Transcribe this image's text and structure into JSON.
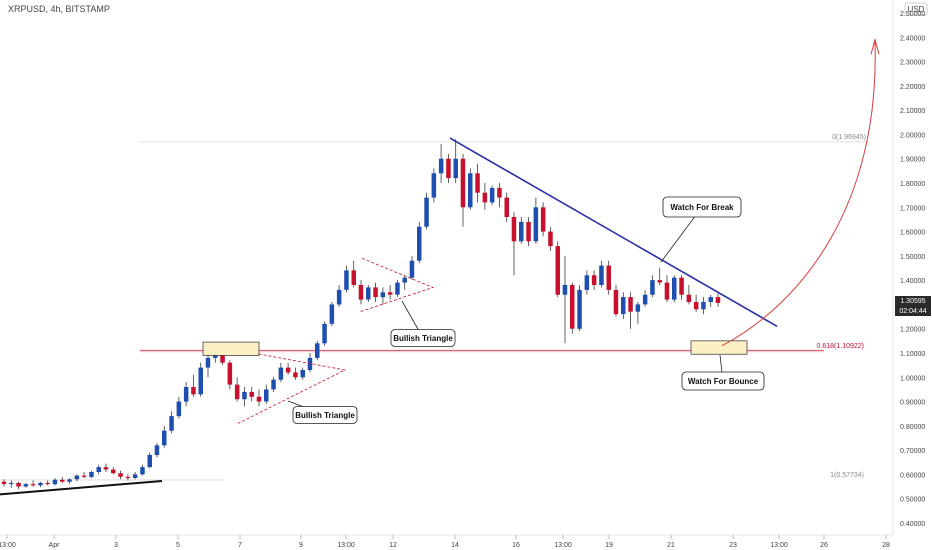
{
  "header": {
    "title": "XRPUSD, 4h, BITSTAMP",
    "currency": "USD"
  },
  "colors": {
    "up": "#1e4fb0",
    "down": "#c8102e",
    "trendline": "#2b2fa3",
    "fib": "#c8102e",
    "fib_zero": "#8c8c8c",
    "arrow": "#d83a3a",
    "zone_fill": "#fdf0c4",
    "zone_stroke": "#2a2a2a",
    "last_price_bg": "#2a2a2a",
    "axis_text": "#444444"
  },
  "chart_data": {
    "type": "candlestick",
    "ylim": [
      0.4,
      2.5
    ],
    "y_ticks": [
      "2.50000",
      "2.40000",
      "2.30000",
      "2.20000",
      "2.10000",
      "2.00000",
      "1.90000",
      "1.80000",
      "1.70000",
      "1.60000",
      "1.50000",
      "1.40000",
      "1.30000",
      "1.20000",
      "1.10000",
      "1.00000",
      "0.90000",
      "0.80000",
      "0.70000",
      "0.60000",
      "0.50000",
      "0.40000"
    ],
    "x_ticks": [
      "13:00",
      "Apr",
      "3",
      "5",
      "7",
      "9",
      "13:00",
      "12",
      "14",
      "16",
      "13:00",
      "19",
      "21",
      "23",
      "13:00",
      "26",
      "28"
    ],
    "last_price": "1.30595",
    "countdown": "02:04:44",
    "fib_levels": [
      {
        "label": "0(1.96945)",
        "value": 1.96945
      },
      {
        "label": "0.618(1.10922)",
        "value": 1.10922
      },
      {
        "label": "1(0.57734)",
        "value": 0.57734
      }
    ],
    "annotations": {
      "watch_break": "Watch For Break",
      "watch_bounce": "Watch For Bounce",
      "triangle_1": "Bullish Triangle",
      "triangle_2": "Bullish Triangle"
    },
    "series": [
      {
        "values": [
          [
            0.57,
            0.58,
            0.55,
            0.56
          ],
          [
            0.56,
            0.575,
            0.545,
            0.565
          ],
          [
            0.565,
            0.57,
            0.54,
            0.55
          ],
          [
            0.55,
            0.565,
            0.545,
            0.56
          ],
          [
            0.56,
            0.575,
            0.55,
            0.555
          ],
          [
            0.555,
            0.57,
            0.548,
            0.565
          ],
          [
            0.565,
            0.575,
            0.555,
            0.56
          ],
          [
            0.56,
            0.585,
            0.555,
            0.578
          ],
          [
            0.578,
            0.59,
            0.565,
            0.57
          ],
          [
            0.57,
            0.585,
            0.562,
            0.58
          ],
          [
            0.58,
            0.6,
            0.572,
            0.595
          ],
          [
            0.595,
            0.61,
            0.585,
            0.59
          ],
          [
            0.59,
            0.615,
            0.585,
            0.61
          ],
          [
            0.61,
            0.64,
            0.6,
            0.63
          ],
          [
            0.63,
            0.645,
            0.61,
            0.62
          ],
          [
            0.62,
            0.63,
            0.6,
            0.605
          ],
          [
            0.605,
            0.615,
            0.58,
            0.59
          ],
          [
            0.59,
            0.6,
            0.575,
            0.585
          ],
          [
            0.585,
            0.61,
            0.58,
            0.6
          ],
          [
            0.6,
            0.64,
            0.595,
            0.63
          ],
          [
            0.63,
            0.69,
            0.625,
            0.68
          ],
          [
            0.68,
            0.73,
            0.67,
            0.72
          ],
          [
            0.72,
            0.8,
            0.71,
            0.78
          ],
          [
            0.78,
            0.86,
            0.77,
            0.84
          ],
          [
            0.84,
            0.92,
            0.83,
            0.9
          ],
          [
            0.9,
            0.98,
            0.88,
            0.96
          ],
          [
            0.96,
            1.01,
            0.92,
            0.93
          ],
          [
            0.93,
            1.06,
            0.92,
            1.04
          ],
          [
            1.04,
            1.1,
            1.0,
            1.08
          ],
          [
            1.08,
            1.13,
            1.06,
            1.11
          ],
          [
            1.11,
            1.12,
            1.05,
            1.06
          ],
          [
            1.06,
            1.07,
            0.95,
            0.97
          ],
          [
            0.97,
            1.0,
            0.9,
            0.91
          ],
          [
            0.91,
            0.96,
            0.88,
            0.94
          ],
          [
            0.94,
            0.96,
            0.9,
            0.92
          ],
          [
            0.92,
            0.95,
            0.88,
            0.9
          ],
          [
            0.9,
            0.97,
            0.89,
            0.95
          ],
          [
            0.95,
            1.0,
            0.94,
            0.99
          ],
          [
            0.99,
            1.06,
            0.98,
            1.04
          ],
          [
            1.04,
            1.06,
            1.01,
            1.02
          ],
          [
            1.02,
            1.04,
            0.99,
            1.0
          ],
          [
            1.0,
            1.04,
            0.99,
            1.03
          ],
          [
            1.03,
            1.1,
            1.02,
            1.08
          ],
          [
            1.08,
            1.15,
            1.07,
            1.14
          ],
          [
            1.14,
            1.23,
            1.13,
            1.22
          ],
          [
            1.22,
            1.31,
            1.21,
            1.3
          ],
          [
            1.3,
            1.38,
            1.29,
            1.36
          ],
          [
            1.36,
            1.46,
            1.35,
            1.44
          ],
          [
            1.44,
            1.48,
            1.37,
            1.38
          ],
          [
            1.38,
            1.4,
            1.3,
            1.32
          ],
          [
            1.32,
            1.38,
            1.31,
            1.37
          ],
          [
            1.37,
            1.39,
            1.31,
            1.33
          ],
          [
            1.33,
            1.37,
            1.3,
            1.35
          ],
          [
            1.35,
            1.38,
            1.32,
            1.34
          ],
          [
            1.34,
            1.4,
            1.33,
            1.39
          ],
          [
            1.39,
            1.42,
            1.36,
            1.41
          ],
          [
            1.41,
            1.5,
            1.4,
            1.48
          ],
          [
            1.48,
            1.64,
            1.47,
            1.62
          ],
          [
            1.62,
            1.76,
            1.61,
            1.74
          ],
          [
            1.74,
            1.86,
            1.72,
            1.84
          ],
          [
            1.84,
            1.96,
            1.8,
            1.9
          ],
          [
            1.9,
            1.92,
            1.8,
            1.82
          ],
          [
            1.82,
            1.98,
            1.8,
            1.9
          ],
          [
            1.9,
            1.92,
            1.62,
            1.7
          ],
          [
            1.7,
            1.86,
            1.69,
            1.84
          ],
          [
            1.84,
            1.88,
            1.72,
            1.76
          ],
          [
            1.76,
            1.8,
            1.69,
            1.72
          ],
          [
            1.72,
            1.79,
            1.71,
            1.78
          ],
          [
            1.78,
            1.8,
            1.7,
            1.74
          ],
          [
            1.74,
            1.76,
            1.64,
            1.66
          ],
          [
            1.66,
            1.68,
            1.42,
            1.56
          ],
          [
            1.56,
            1.66,
            1.55,
            1.64
          ],
          [
            1.64,
            1.66,
            1.54,
            1.56
          ],
          [
            1.56,
            1.74,
            1.55,
            1.7
          ],
          [
            1.7,
            1.72,
            1.58,
            1.6
          ],
          [
            1.6,
            1.62,
            1.52,
            1.54
          ],
          [
            1.54,
            1.56,
            1.33,
            1.34
          ],
          [
            1.34,
            1.5,
            1.14,
            1.38
          ],
          [
            1.38,
            1.39,
            1.18,
            1.2
          ],
          [
            1.2,
            1.38,
            1.19,
            1.36
          ],
          [
            1.36,
            1.44,
            1.34,
            1.42
          ],
          [
            1.42,
            1.44,
            1.36,
            1.38
          ],
          [
            1.38,
            1.48,
            1.37,
            1.46
          ],
          [
            1.46,
            1.48,
            1.34,
            1.36
          ],
          [
            1.36,
            1.38,
            1.25,
            1.26
          ],
          [
            1.26,
            1.35,
            1.24,
            1.33
          ],
          [
            1.33,
            1.35,
            1.2,
            1.27
          ],
          [
            1.27,
            1.31,
            1.22,
            1.3
          ],
          [
            1.3,
            1.36,
            1.29,
            1.34
          ],
          [
            1.34,
            1.42,
            1.33,
            1.4
          ],
          [
            1.4,
            1.45,
            1.38,
            1.39
          ],
          [
            1.39,
            1.42,
            1.31,
            1.32
          ],
          [
            1.32,
            1.42,
            1.31,
            1.41
          ],
          [
            1.41,
            1.42,
            1.32,
            1.34
          ],
          [
            1.34,
            1.38,
            1.3,
            1.31
          ],
          [
            1.31,
            1.34,
            1.27,
            1.28
          ],
          [
            1.28,
            1.33,
            1.26,
            1.31
          ],
          [
            1.31,
            1.34,
            1.29,
            1.33
          ],
          [
            1.33,
            1.345,
            1.29,
            1.306
          ]
        ]
      }
    ]
  }
}
